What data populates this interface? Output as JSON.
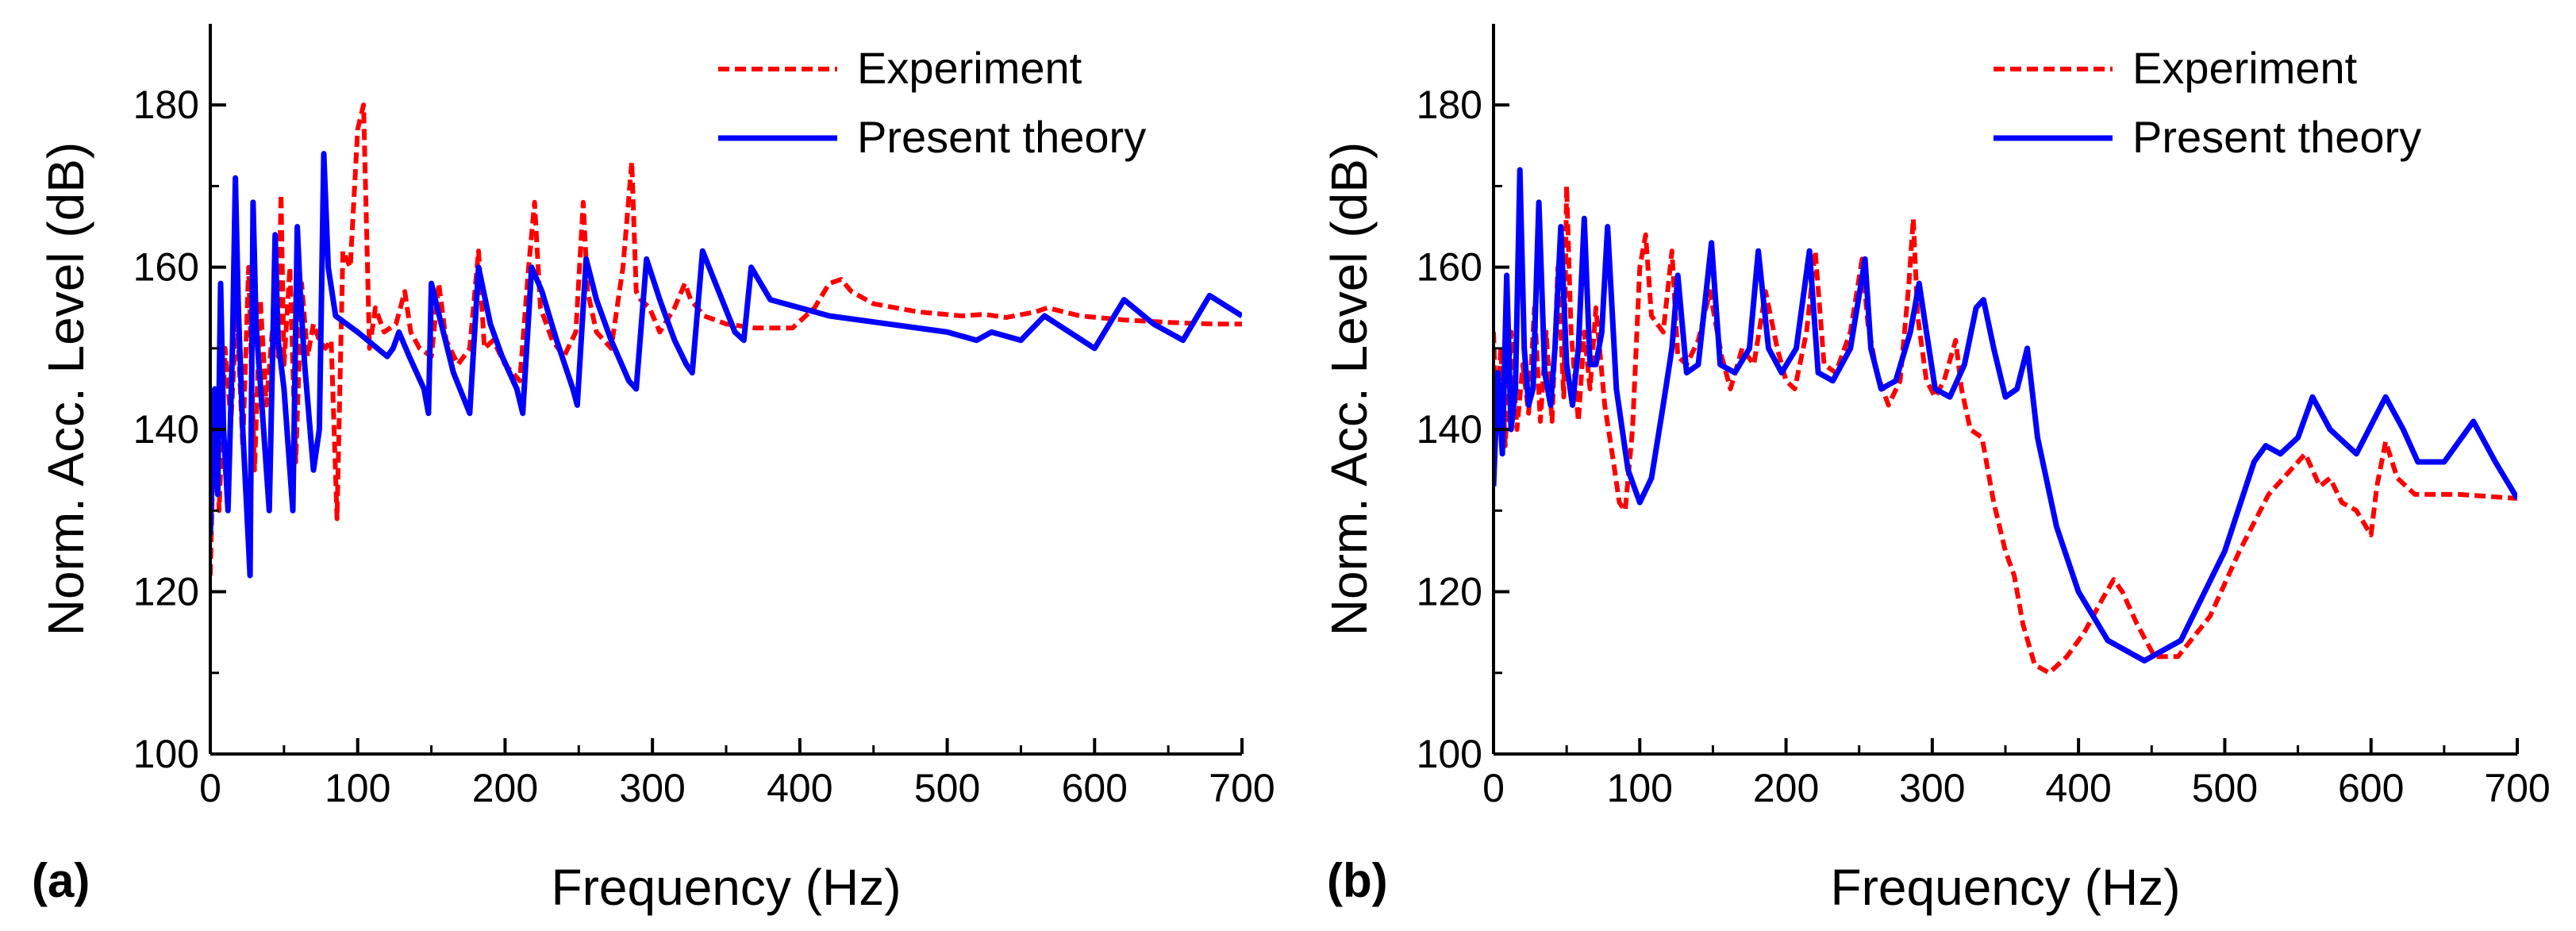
{
  "chart_data": [
    {
      "type": "line",
      "panel_label": "(a)",
      "xlabel": "Frequency (Hz)",
      "ylabel": "Norm. Acc. Level (dB)",
      "xlim": [
        0,
        700
      ],
      "ylim": [
        100,
        190
      ],
      "xticks": [
        0,
        100,
        200,
        300,
        400,
        500,
        600,
        700
      ],
      "yticks": [
        100,
        120,
        140,
        160,
        180
      ],
      "legend_position": "top-right",
      "series": [
        {
          "name": "Experiment",
          "style": "dashed",
          "color": "#FF0000",
          "x": [
            0,
            3,
            6,
            10,
            14,
            18,
            22,
            26,
            30,
            34,
            38,
            42,
            46,
            48,
            50,
            54,
            58,
            62,
            66,
            70,
            74,
            78,
            82,
            86,
            90,
            95,
            100,
            104,
            108,
            112,
            118,
            126,
            132,
            136,
            142,
            150,
            155,
            160,
            168,
            176,
            182,
            186,
            192,
            200,
            210,
            216,
            220,
            224,
            232,
            240,
            248,
            253,
            256,
            262,
            272,
            280,
            286,
            289,
            292,
            298,
            305,
            315,
            322,
            326,
            335,
            350,
            370,
            395,
            410,
            420,
            428,
            435,
            450,
            480,
            510,
            525,
            540,
            560,
            568,
            590,
            620,
            650,
            680,
            700
          ],
          "y": [
            122,
            145,
            130,
            150,
            141,
            155,
            138,
            160,
            135,
            156,
            143,
            152,
            149,
            169,
            148,
            160,
            136,
            158,
            149,
            153,
            151,
            150,
            151,
            129,
            162,
            160,
            177,
            180,
            150,
            155,
            152,
            153,
            157,
            152,
            150,
            149,
            158,
            151,
            148,
            150,
            162,
            150,
            151,
            148,
            146,
            160,
            168,
            155,
            151,
            149,
            152,
            168,
            157,
            152,
            150,
            160,
            173,
            157,
            156,
            155,
            152,
            155,
            158,
            156,
            154,
            153,
            152.5,
            152.5,
            155,
            158,
            158.5,
            157,
            155.5,
            154.5,
            154,
            154.2,
            153.8,
            154.5,
            155,
            154,
            153.5,
            153.2,
            153,
            153
          ]
        },
        {
          "name": "Present theory",
          "style": "solid",
          "color": "#0000FF",
          "x": [
            0,
            3,
            5,
            7,
            9,
            12,
            15,
            17,
            19,
            22,
            27,
            29,
            31,
            35,
            40,
            44,
            46,
            50,
            56,
            59,
            61,
            64,
            70,
            74,
            77,
            80,
            85,
            100,
            120,
            124,
            128,
            135,
            145,
            148,
            150,
            154,
            165,
            176,
            182,
            190,
            198,
            208,
            212,
            218,
            225,
            235,
            246,
            249,
            255,
            262,
            272,
            284,
            289,
            296,
            305,
            315,
            323,
            327,
            334,
            345,
            356,
            362,
            367,
            380,
            420,
            460,
            500,
            520,
            530,
            550,
            566,
            600,
            620,
            640,
            660,
            678,
            700
          ],
          "y": [
            127,
            145,
            132,
            158,
            140,
            130,
            150,
            171,
            155,
            140,
            122,
            168,
            153,
            143,
            130,
            164,
            151,
            145,
            130,
            165,
            157,
            148,
            135,
            140,
            174,
            160,
            154,
            152,
            149,
            150,
            152,
            149,
            145,
            142,
            158,
            155,
            147,
            142,
            160,
            153,
            149,
            145,
            142,
            160,
            157,
            151,
            145,
            143,
            161,
            156,
            151,
            146,
            145,
            161,
            156,
            151,
            148,
            147,
            162,
            157,
            152,
            151,
            160,
            156,
            154,
            153,
            152,
            151,
            152,
            151,
            154,
            150,
            156,
            153,
            151,
            156.5,
            154
          ]
        }
      ]
    },
    {
      "type": "line",
      "panel_label": "(b)",
      "xlabel": "Frequency (Hz)",
      "ylabel": "Norm. Acc. Level (dB)",
      "xlim": [
        0,
        700
      ],
      "ylim": [
        100,
        190
      ],
      "xticks": [
        0,
        100,
        200,
        300,
        400,
        500,
        600,
        700
      ],
      "yticks": [
        100,
        120,
        140,
        160,
        180
      ],
      "legend_position": "top-right",
      "series": [
        {
          "name": "Experiment",
          "style": "dashed",
          "color": "#FF0000",
          "x": [
            0,
            2,
            5,
            8,
            12,
            16,
            20,
            24,
            28,
            32,
            36,
            40,
            44,
            48,
            50,
            53,
            58,
            62,
            66,
            70,
            76,
            82,
            86,
            90,
            95,
            100,
            104,
            108,
            116,
            122,
            126,
            132,
            140,
            148,
            156,
            162,
            170,
            178,
            186,
            194,
            200,
            206,
            214,
            220,
            226,
            234,
            244,
            252,
            256,
            262,
            270,
            278,
            284,
            287,
            290,
            296,
            302,
            308,
            316,
            320,
            326,
            334,
            342,
            350,
            356,
            362,
            370,
            380,
            392,
            404,
            416,
            424,
            430,
            440,
            452,
            468,
            490,
            510,
            530,
            545,
            555,
            565,
            572,
            580,
            590,
            600,
            604,
            610,
            618,
            630,
            660,
            700
          ],
          "y": [
            152,
            140,
            150,
            138,
            152,
            140,
            148,
            142,
            155,
            141,
            152,
            141,
            160,
            144,
            170,
            152,
            141,
            152,
            145,
            155,
            143,
            136,
            131,
            130,
            140,
            160,
            164,
            154,
            152,
            162,
            149,
            148,
            151,
            157,
            149,
            145,
            150,
            148,
            157,
            150,
            146,
            145,
            152,
            162,
            148,
            147,
            152,
            161,
            153,
            147,
            143,
            146,
            158,
            166,
            154,
            146,
            144,
            146,
            151,
            145,
            140,
            139,
            131,
            125,
            122,
            116,
            111,
            110,
            112,
            115,
            119,
            121.5,
            120,
            116,
            112,
            112,
            117,
            125,
            132,
            135,
            137,
            133,
            134,
            131,
            130,
            127,
            133,
            138.5,
            134,
            132,
            132,
            131.5
          ]
        },
        {
          "name": "Present theory",
          "style": "solid",
          "color": "#0000FF",
          "x": [
            0,
            3,
            6,
            9,
            12,
            15,
            18,
            21,
            24,
            27,
            31,
            35,
            39,
            42,
            46,
            50,
            54,
            58,
            62,
            66,
            70,
            74,
            78,
            84,
            92,
            100,
            108,
            116,
            122,
            126,
            132,
            140,
            149,
            155,
            165,
            175,
            181,
            188,
            197,
            207,
            216,
            222,
            232,
            244,
            254,
            258,
            265,
            275,
            285,
            291,
            296,
            302,
            312,
            322,
            330,
            335,
            342,
            350,
            358,
            365,
            372,
            385,
            400,
            420,
            445,
            470,
            500,
            520,
            528,
            538,
            550,
            560,
            572,
            590,
            610,
            622,
            632,
            650,
            670,
            685,
            700
          ],
          "y": [
            133,
            147,
            137,
            159,
            140,
            145,
            172,
            150,
            143,
            145,
            168,
            147,
            143,
            150,
            165,
            148,
            143,
            150,
            166,
            148,
            148,
            152,
            165,
            145,
            135,
            131,
            134,
            143,
            150,
            159,
            147,
            148,
            163,
            148,
            147,
            150,
            162,
            150,
            147,
            150,
            162,
            147,
            146,
            150,
            161,
            150,
            145,
            146,
            152,
            158,
            152,
            145,
            144,
            148,
            155,
            156,
            150,
            144,
            145,
            150,
            139,
            128,
            120,
            114,
            111.5,
            114,
            125,
            136,
            138,
            137,
            139,
            144,
            140,
            137,
            144,
            140,
            136,
            136,
            141,
            136,
            131.5
          ]
        }
      ]
    }
  ]
}
